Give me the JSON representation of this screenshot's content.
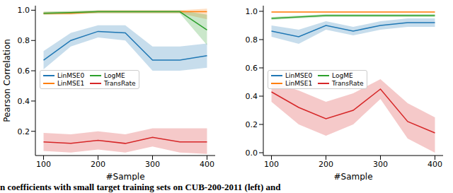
{
  "caption": "n coefficients with small target training sets on CUB-200-2011 (left) and",
  "chart_data": [
    {
      "type": "line",
      "x": [
        100,
        150,
        200,
        250,
        300,
        350,
        400
      ],
      "xlim": [
        85,
        415
      ],
      "xticks": [
        100,
        200,
        300,
        400
      ],
      "ylim": [
        0.04,
        1.03
      ],
      "yticks": [
        {
          "value": 0.2,
          "label": "0.2"
        },
        {
          "value": 0.4,
          "label": "0.4"
        },
        {
          "value": 0.6,
          "label": "0.6"
        },
        {
          "value": 0.8,
          "label": "0.8"
        },
        {
          "value": 1.0,
          "label": "1.0"
        }
      ],
      "xlabel": "#Sample",
      "ylabel": "Pearson Correlation",
      "legend": "center left",
      "series": [
        {
          "name": "LinMSE0",
          "color": "#1f77b4",
          "values": [
            0.67,
            0.8,
            0.86,
            0.85,
            0.67,
            0.67,
            0.7
          ],
          "lower": [
            0.61,
            0.76,
            0.82,
            0.8,
            0.6,
            0.6,
            0.62
          ],
          "upper": [
            0.73,
            0.85,
            0.9,
            0.9,
            0.76,
            0.76,
            0.78
          ]
        },
        {
          "name": "LinMSE1",
          "color": "#ff7f0e",
          "values": [
            0.98,
            0.98,
            0.99,
            0.99,
            0.99,
            0.99,
            0.99
          ],
          "lower": [
            0.97,
            0.97,
            0.98,
            0.98,
            0.98,
            0.98,
            0.94
          ],
          "upper": [
            0.99,
            0.99,
            1.0,
            1.0,
            1.0,
            1.0,
            1.01
          ]
        },
        {
          "name": "LogME",
          "color": "#2ca02c",
          "values": [
            0.98,
            0.985,
            0.99,
            0.99,
            0.99,
            0.99,
            0.87
          ],
          "lower": [
            0.97,
            0.975,
            0.98,
            0.98,
            0.98,
            0.98,
            0.77
          ],
          "upper": [
            0.99,
            0.995,
            1.0,
            1.0,
            1.0,
            1.0,
            0.97
          ]
        },
        {
          "name": "TransRate",
          "color": "#d62728",
          "values": [
            0.13,
            0.12,
            0.14,
            0.12,
            0.16,
            0.13,
            0.13
          ],
          "lower": [
            0.07,
            0.06,
            0.08,
            0.06,
            0.1,
            0.06,
            0.05
          ],
          "upper": [
            0.19,
            0.18,
            0.2,
            0.18,
            0.22,
            0.22,
            0.22
          ]
        }
      ]
    },
    {
      "type": "line",
      "x": [
        100,
        150,
        200,
        250,
        300,
        350,
        400
      ],
      "xlim": [
        85,
        415
      ],
      "xticks": [
        100,
        200,
        300,
        400
      ],
      "ylim": [
        -0.02,
        1.04
      ],
      "yticks": [
        {
          "value": 0.0,
          "label": "0.0"
        },
        {
          "value": 0.2,
          "label": "0.2"
        },
        {
          "value": 0.4,
          "label": "0.4"
        },
        {
          "value": 0.6,
          "label": "0.6"
        },
        {
          "value": 0.8,
          "label": "0.8"
        },
        {
          "value": 1.0,
          "label": "1.0"
        }
      ],
      "xlabel": "#Sample",
      "legend": "center left",
      "series": [
        {
          "name": "LinMSE0",
          "color": "#1f77b4",
          "values": [
            0.86,
            0.82,
            0.9,
            0.86,
            0.9,
            0.92,
            0.92
          ],
          "lower": [
            0.82,
            0.77,
            0.87,
            0.83,
            0.87,
            0.89,
            0.89
          ],
          "upper": [
            0.9,
            0.87,
            0.93,
            0.89,
            0.93,
            0.95,
            0.95
          ]
        },
        {
          "name": "LinMSE1",
          "color": "#ff7f0e",
          "values": [
            0.995,
            0.995,
            0.995,
            0.995,
            0.995,
            0.995,
            0.995
          ],
          "lower": [
            0.99,
            0.99,
            0.99,
            0.99,
            0.99,
            0.99,
            0.99
          ],
          "upper": [
            1.0,
            1.0,
            1.0,
            1.0,
            1.0,
            1.0,
            1.0
          ]
        },
        {
          "name": "LogME",
          "color": "#2ca02c",
          "values": [
            0.95,
            0.96,
            0.97,
            0.97,
            0.97,
            0.97,
            0.97
          ],
          "lower": [
            0.94,
            0.95,
            0.96,
            0.96,
            0.96,
            0.96,
            0.96
          ],
          "upper": [
            0.96,
            0.97,
            0.98,
            0.98,
            0.98,
            0.98,
            0.98
          ]
        },
        {
          "name": "TransRate",
          "color": "#d62728",
          "values": [
            0.43,
            0.32,
            0.24,
            0.3,
            0.45,
            0.22,
            0.14
          ],
          "lower": [
            0.36,
            0.2,
            0.12,
            0.2,
            0.38,
            0.1,
            0.0
          ],
          "upper": [
            0.5,
            0.44,
            0.36,
            0.42,
            0.52,
            0.35,
            0.25
          ]
        }
      ]
    }
  ]
}
